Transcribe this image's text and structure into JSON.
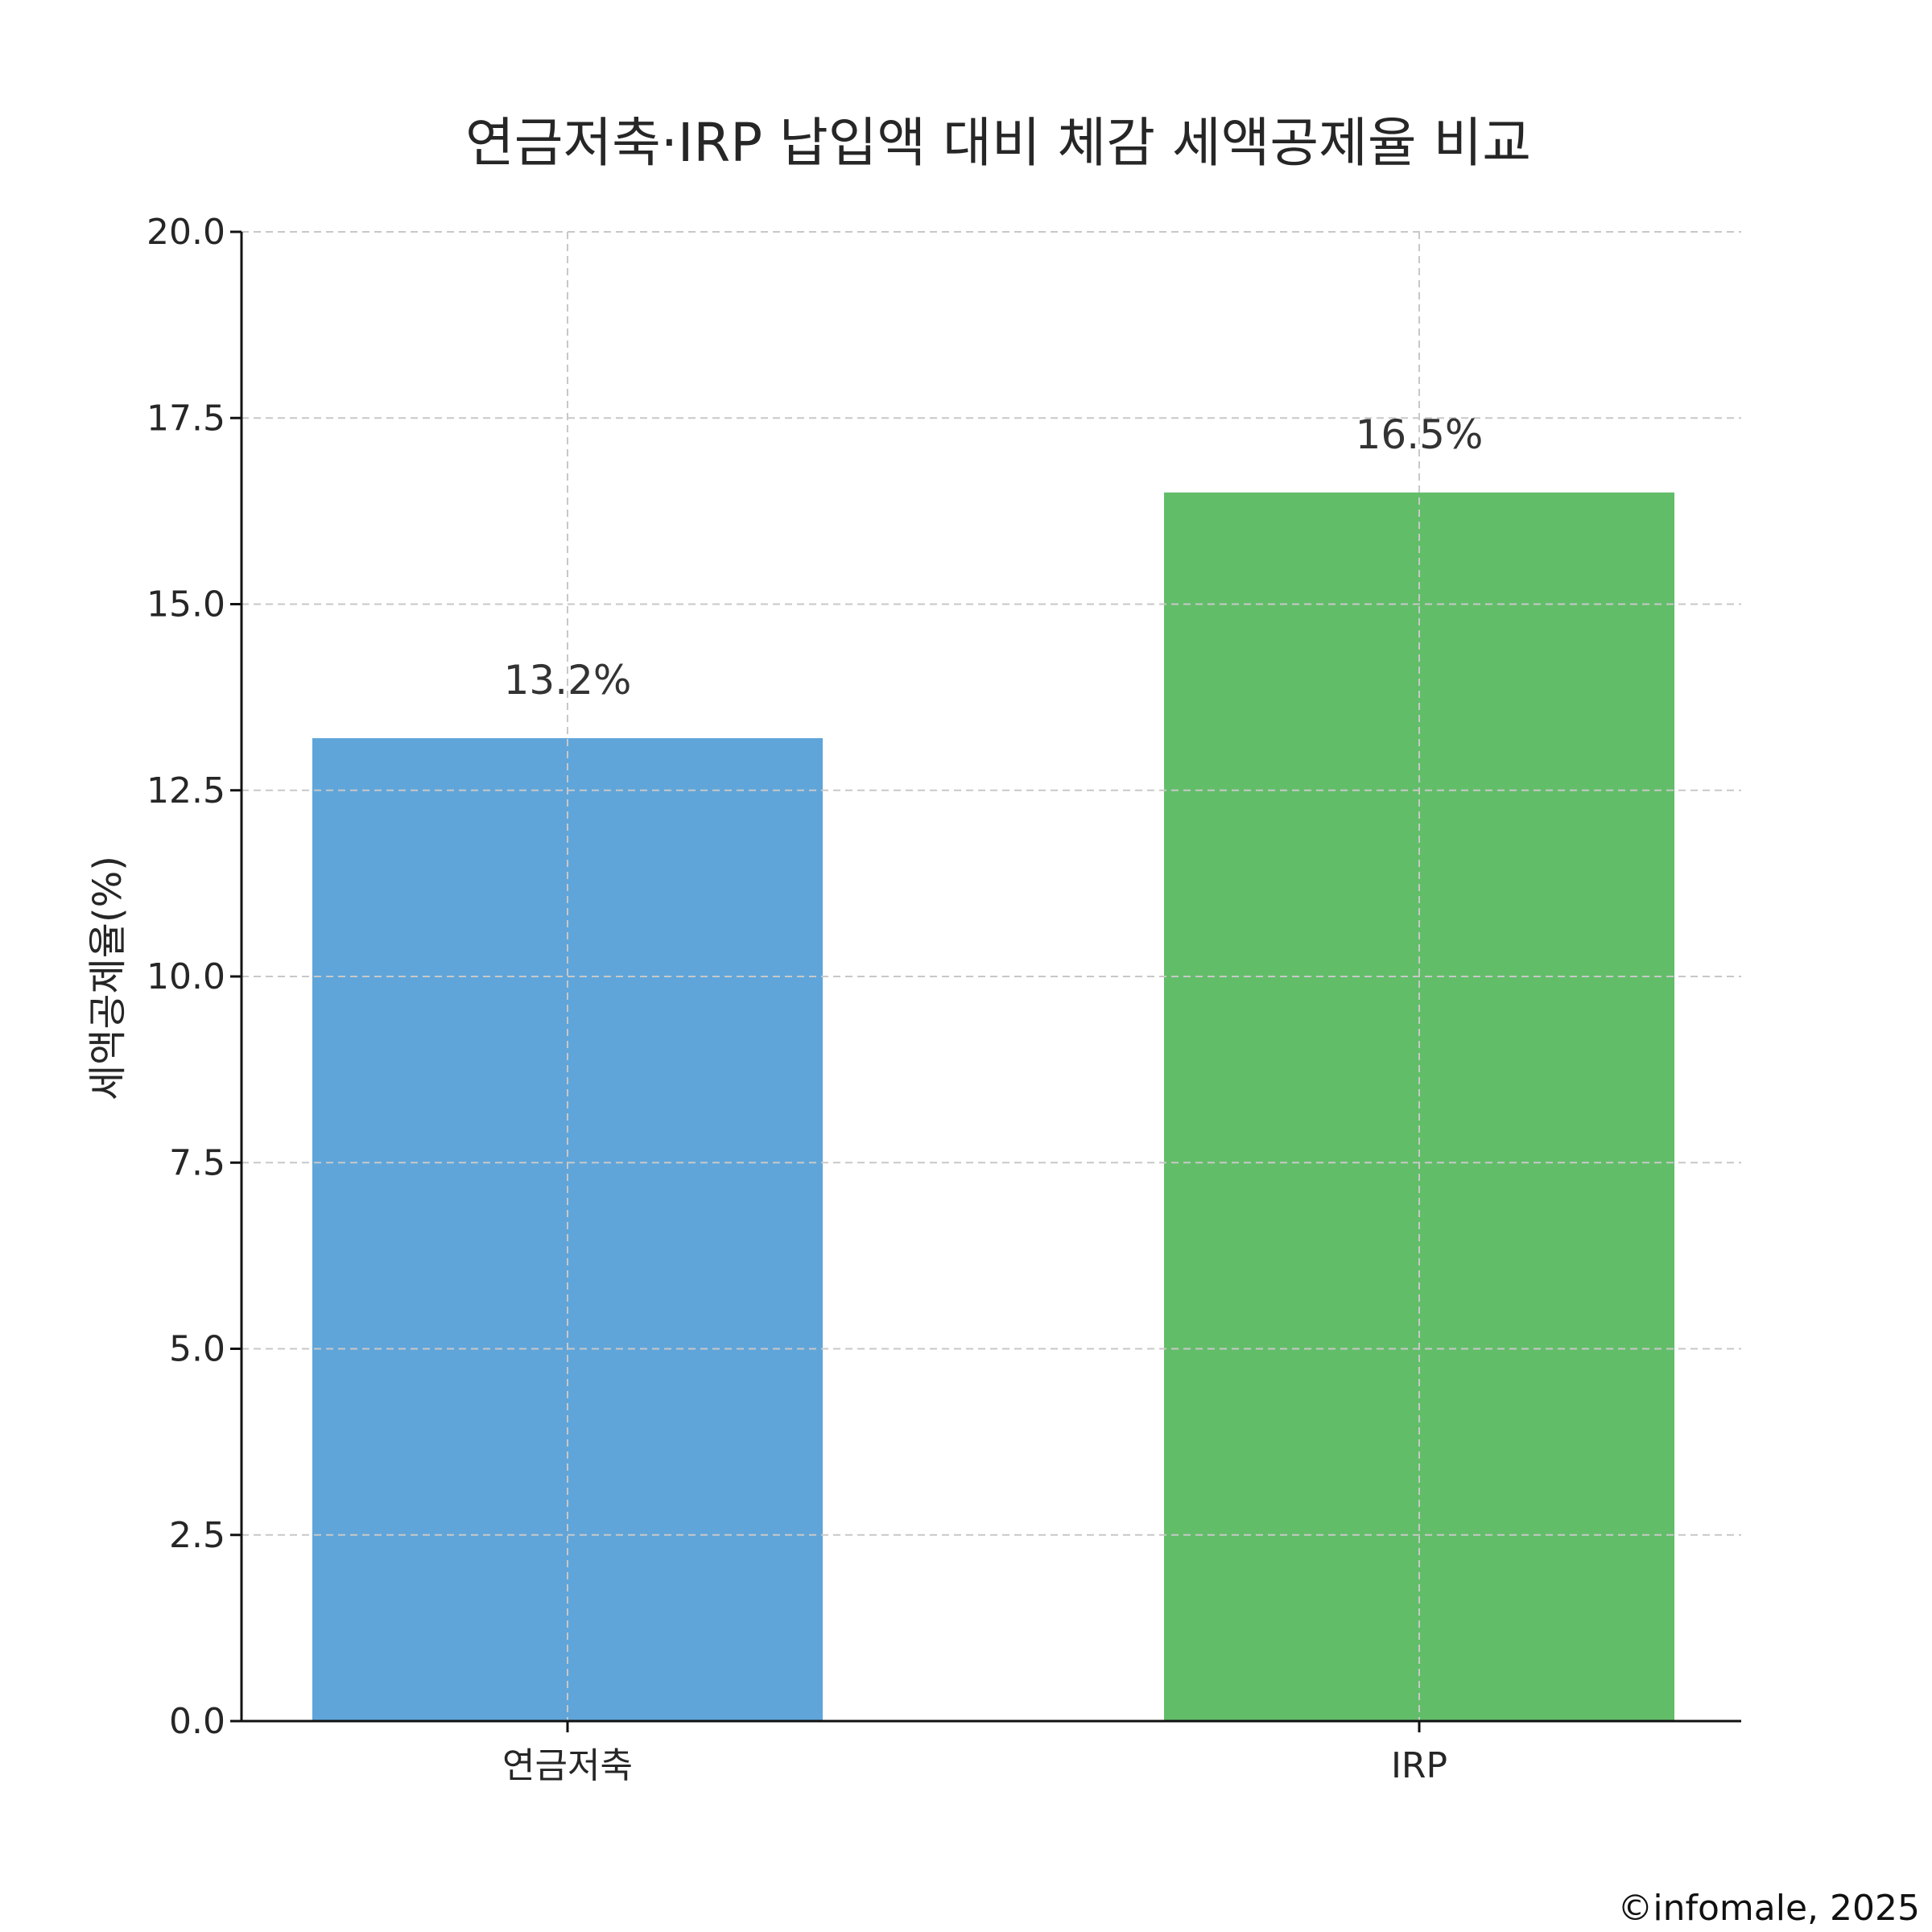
{
  "chart_data": {
    "type": "bar",
    "title": "연금저축·IRP 납입액 대비 체감 세액공제율 비교",
    "ylabel": "세액공제율(%)",
    "xlabel": "",
    "categories": [
      "연금저축",
      "IRP"
    ],
    "values": [
      13.2,
      16.5
    ],
    "data_labels": [
      "13.2%",
      "16.5%"
    ],
    "bar_colors": [
      "#5fa5da",
      "#62bd69"
    ],
    "ylim": [
      0,
      20
    ],
    "yticks": [
      0.0,
      2.5,
      5.0,
      7.5,
      10.0,
      12.5,
      15.0,
      17.5,
      20.0
    ],
    "ytick_labels": [
      "0.0",
      "2.5",
      "5.0",
      "7.5",
      "10.0",
      "12.5",
      "15.0",
      "17.5",
      "20.0"
    ],
    "grid": true,
    "legend": "none"
  },
  "credit": "©infomale, 2025"
}
